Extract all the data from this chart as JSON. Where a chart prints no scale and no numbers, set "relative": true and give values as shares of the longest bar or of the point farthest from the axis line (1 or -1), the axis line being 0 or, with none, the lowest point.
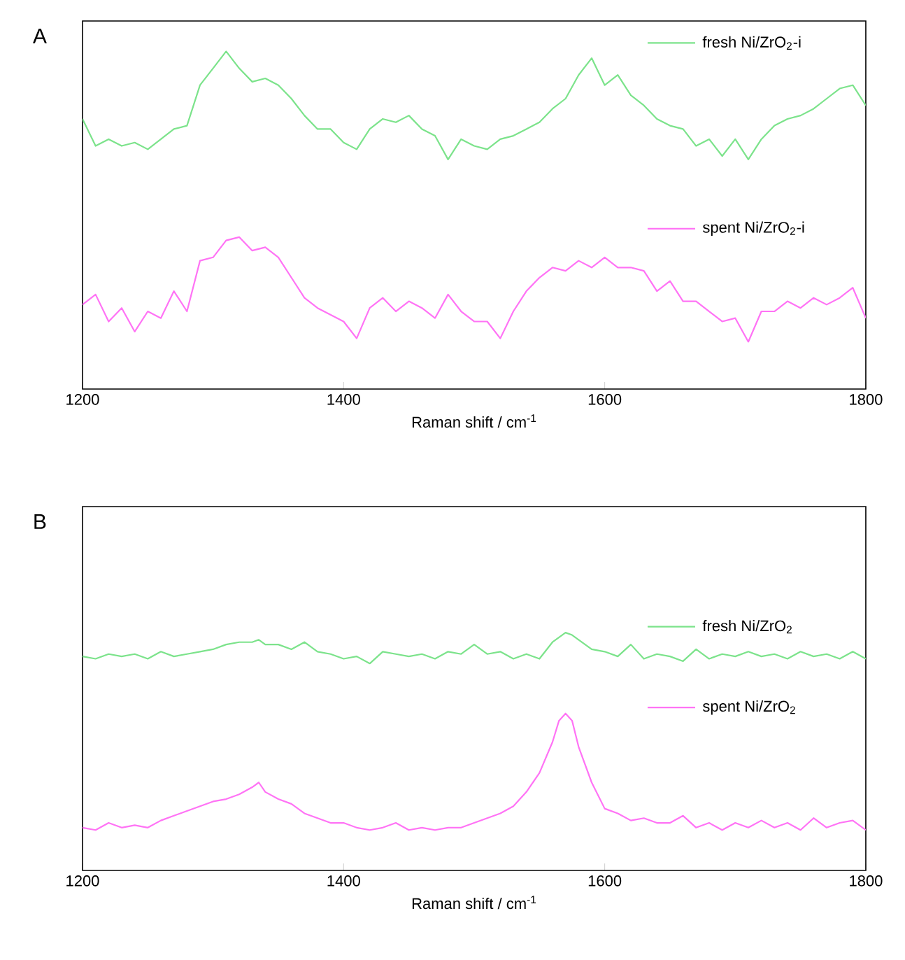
{
  "chart_data": [
    {
      "type": "line",
      "title": "A",
      "xlabel": "Raman shift / cm$^{-1}$",
      "relative": true,
      "legend": "top right",
      "xlim": [
        1200,
        1800
      ],
      "xticks": [
        1200,
        1400,
        1600,
        1800
      ],
      "x": [
        1200,
        1210,
        1220,
        1230,
        1240,
        1250,
        1260,
        1270,
        1280,
        1290,
        1300,
        1310,
        1320,
        1330,
        1340,
        1350,
        1360,
        1370,
        1380,
        1390,
        1400,
        1410,
        1420,
        1430,
        1440,
        1450,
        1460,
        1470,
        1480,
        1490,
        1500,
        1510,
        1520,
        1530,
        1540,
        1550,
        1560,
        1570,
        1580,
        1590,
        1600,
        1610,
        1620,
        1630,
        1640,
        1650,
        1660,
        1670,
        1680,
        1690,
        1700,
        1710,
        1720,
        1730,
        1740,
        1750,
        1760,
        1770,
        1780,
        1790,
        1800
      ],
      "series": [
        {
          "name": "fresh Ni/ZrO$_{2}$-i",
          "color": "#7ce38b",
          "values": [
            0.8,
            0.72,
            0.74,
            0.72,
            0.73,
            0.71,
            0.74,
            0.77,
            0.78,
            0.9,
            0.95,
            1.0,
            0.95,
            0.91,
            0.92,
            0.9,
            0.86,
            0.81,
            0.77,
            0.77,
            0.73,
            0.71,
            0.77,
            0.8,
            0.79,
            0.81,
            0.77,
            0.75,
            0.68,
            0.74,
            0.72,
            0.71,
            0.74,
            0.75,
            0.77,
            0.79,
            0.83,
            0.86,
            0.93,
            0.98,
            0.9,
            0.93,
            0.87,
            0.84,
            0.8,
            0.78,
            0.77,
            0.72,
            0.74,
            0.69,
            0.74,
            0.68,
            0.74,
            0.78,
            0.8,
            0.81,
            0.83,
            0.86,
            0.89,
            0.9,
            0.84
          ]
        },
        {
          "name": "spent Ni/ZrO$_{2}$-i",
          "color": "#ff73f5",
          "values": [
            0.25,
            0.28,
            0.2,
            0.24,
            0.17,
            0.23,
            0.21,
            0.29,
            0.23,
            0.38,
            0.39,
            0.44,
            0.45,
            0.41,
            0.42,
            0.39,
            0.33,
            0.27,
            0.24,
            0.22,
            0.2,
            0.15,
            0.24,
            0.27,
            0.23,
            0.26,
            0.24,
            0.21,
            0.28,
            0.23,
            0.2,
            0.2,
            0.15,
            0.23,
            0.29,
            0.33,
            0.36,
            0.35,
            0.38,
            0.36,
            0.39,
            0.36,
            0.36,
            0.35,
            0.29,
            0.32,
            0.26,
            0.26,
            0.23,
            0.2,
            0.21,
            0.14,
            0.23,
            0.23,
            0.26,
            0.24,
            0.27,
            0.25,
            0.27,
            0.3,
            0.21
          ]
        }
      ]
    },
    {
      "type": "line",
      "title": "B",
      "xlabel": "Raman shift / cm$^{-1}$",
      "relative": true,
      "legend": "top right",
      "xlim": [
        1200,
        1800
      ],
      "xticks": [
        1200,
        1400,
        1600,
        1800
      ],
      "x": [
        1200,
        1210,
        1220,
        1230,
        1240,
        1250,
        1260,
        1270,
        1280,
        1290,
        1300,
        1310,
        1320,
        1330,
        1335,
        1340,
        1350,
        1360,
        1370,
        1380,
        1390,
        1400,
        1410,
        1420,
        1430,
        1440,
        1450,
        1460,
        1470,
        1480,
        1490,
        1500,
        1510,
        1520,
        1530,
        1540,
        1550,
        1560,
        1565,
        1570,
        1575,
        1580,
        1590,
        1600,
        1610,
        1620,
        1630,
        1640,
        1650,
        1660,
        1670,
        1680,
        1690,
        1700,
        1710,
        1720,
        1730,
        1740,
        1750,
        1760,
        1770,
        1780,
        1790,
        1800
      ],
      "series": [
        {
          "name": "fresh Ni/ZrO$_{2}$",
          "color": "#7ce38b",
          "values": [
            0.9,
            0.89,
            0.91,
            0.9,
            0.91,
            0.89,
            0.92,
            0.9,
            0.91,
            0.92,
            0.93,
            0.95,
            0.96,
            0.96,
            0.97,
            0.95,
            0.95,
            0.93,
            0.96,
            0.92,
            0.91,
            0.89,
            0.9,
            0.87,
            0.92,
            0.91,
            0.9,
            0.91,
            0.89,
            0.92,
            0.91,
            0.95,
            0.91,
            0.92,
            0.89,
            0.91,
            0.89,
            0.96,
            0.98,
            1.0,
            0.99,
            0.97,
            0.93,
            0.92,
            0.9,
            0.95,
            0.89,
            0.91,
            0.9,
            0.88,
            0.93,
            0.89,
            0.91,
            0.9,
            0.92,
            0.9,
            0.91,
            0.89,
            0.92,
            0.9,
            0.91,
            0.89,
            0.92,
            0.89
          ]
        },
        {
          "name": "spent Ni/ZrO$_{2}$",
          "color": "#ff73f5",
          "values": [
            0.18,
            0.17,
            0.2,
            0.18,
            0.19,
            0.18,
            0.21,
            0.23,
            0.25,
            0.27,
            0.29,
            0.3,
            0.32,
            0.35,
            0.37,
            0.33,
            0.3,
            0.28,
            0.24,
            0.22,
            0.2,
            0.2,
            0.18,
            0.17,
            0.18,
            0.2,
            0.17,
            0.18,
            0.17,
            0.18,
            0.18,
            0.2,
            0.22,
            0.24,
            0.27,
            0.33,
            0.41,
            0.54,
            0.63,
            0.66,
            0.63,
            0.52,
            0.37,
            0.26,
            0.24,
            0.21,
            0.22,
            0.2,
            0.2,
            0.23,
            0.18,
            0.2,
            0.17,
            0.2,
            0.18,
            0.21,
            0.18,
            0.2,
            0.17,
            0.22,
            0.18,
            0.2,
            0.21,
            0.17
          ]
        }
      ]
    }
  ]
}
